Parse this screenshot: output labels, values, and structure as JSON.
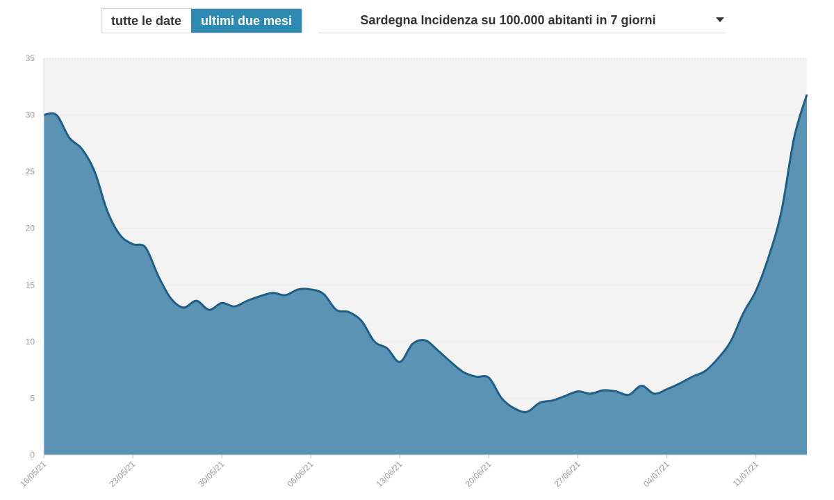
{
  "controls": {
    "toggle_all": "tutte le date",
    "toggle_two_months": "ultimi due mesi",
    "selector_label": "Sardegna Incidenza su 100.000 abitanti in 7 giorni"
  },
  "colors": {
    "area_fill": "#5b93b5",
    "line": "#1f5f87",
    "plot_bg": "#f3f3f3",
    "active_toggle": "#2d8bb3"
  },
  "chart_data": {
    "type": "area",
    "title": "Sardegna Incidenza su 100.000 abitanti in 7 giorni",
    "xlabel": "",
    "ylabel": "",
    "ylim": [
      0,
      35
    ],
    "y_ticks": [
      0,
      5,
      10,
      15,
      20,
      25,
      30,
      35
    ],
    "x_tick_labels": [
      "16/05/21",
      "23/05/21",
      "30/05/21",
      "06/06/21",
      "13/06/21",
      "20/06/21",
      "27/06/21",
      "04/07/21",
      "11/07/21"
    ],
    "x_tick_day_index": [
      0,
      7,
      14,
      21,
      28,
      35,
      42,
      49,
      56
    ],
    "start_date": "16/05/21",
    "end_date": "16/07/21",
    "series": [
      {
        "name": "Sardegna Incidenza su 100.000 abitanti in 7 giorni",
        "values": [
          30.0,
          30.0,
          28.0,
          27.0,
          25.0,
          21.5,
          19.4,
          18.6,
          18.3,
          15.8,
          13.8,
          13.0,
          13.6,
          12.8,
          13.4,
          13.1,
          13.6,
          14.0,
          14.3,
          14.1,
          14.6,
          14.6,
          14.2,
          12.8,
          12.6,
          11.8,
          10.0,
          9.4,
          8.2,
          9.8,
          10.1,
          9.2,
          8.2,
          7.3,
          6.9,
          6.8,
          5.0,
          4.1,
          3.8,
          4.6,
          4.8,
          5.2,
          5.6,
          5.4,
          5.7,
          5.6,
          5.3,
          6.1,
          5.4,
          5.8,
          6.3,
          6.9,
          7.4,
          8.5,
          10.0,
          12.5,
          14.5,
          17.5,
          21.5,
          28.0,
          31.8
        ]
      }
    ]
  }
}
